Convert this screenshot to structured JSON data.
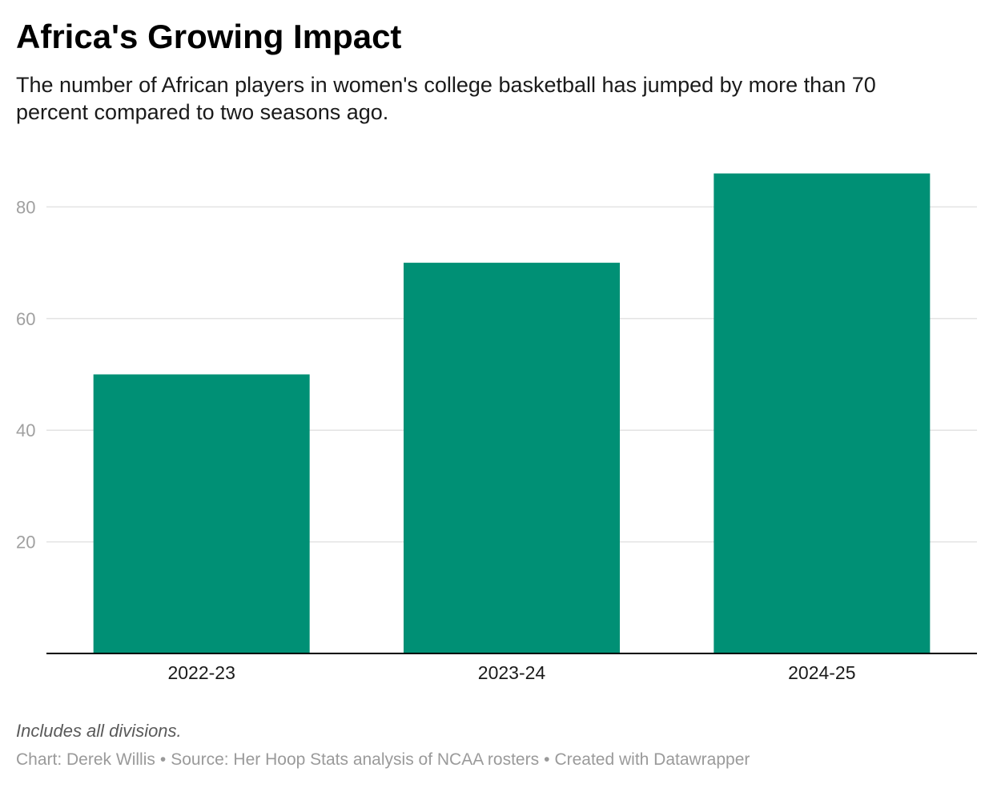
{
  "title": "Africa's Growing Impact",
  "subtitle": "The number of African players in women's college basketball has jumped by more than 70 percent compared to two seasons ago.",
  "note": "Includes all divisions.",
  "footer": {
    "chart_credit": "Chart: Derek Willis",
    "source": "Source: Her Hoop Stats analysis of NCAA rosters",
    "created_with": "Created with Datawrapper",
    "separator": "•"
  },
  "colors": {
    "bar": "#009075",
    "gridline": "#e3e3e3",
    "axis": "#000000",
    "tick_label": "#a0a0a0"
  },
  "chart_data": {
    "type": "bar",
    "categories": [
      "2022-23",
      "2023-24",
      "2024-25"
    ],
    "values": [
      50,
      70,
      86
    ],
    "title": "Africa's Growing Impact",
    "xlabel": "",
    "ylabel": "",
    "ylim": [
      0,
      86
    ],
    "yticks": [
      20,
      40,
      60,
      80
    ],
    "grid": true,
    "legend": "none"
  }
}
